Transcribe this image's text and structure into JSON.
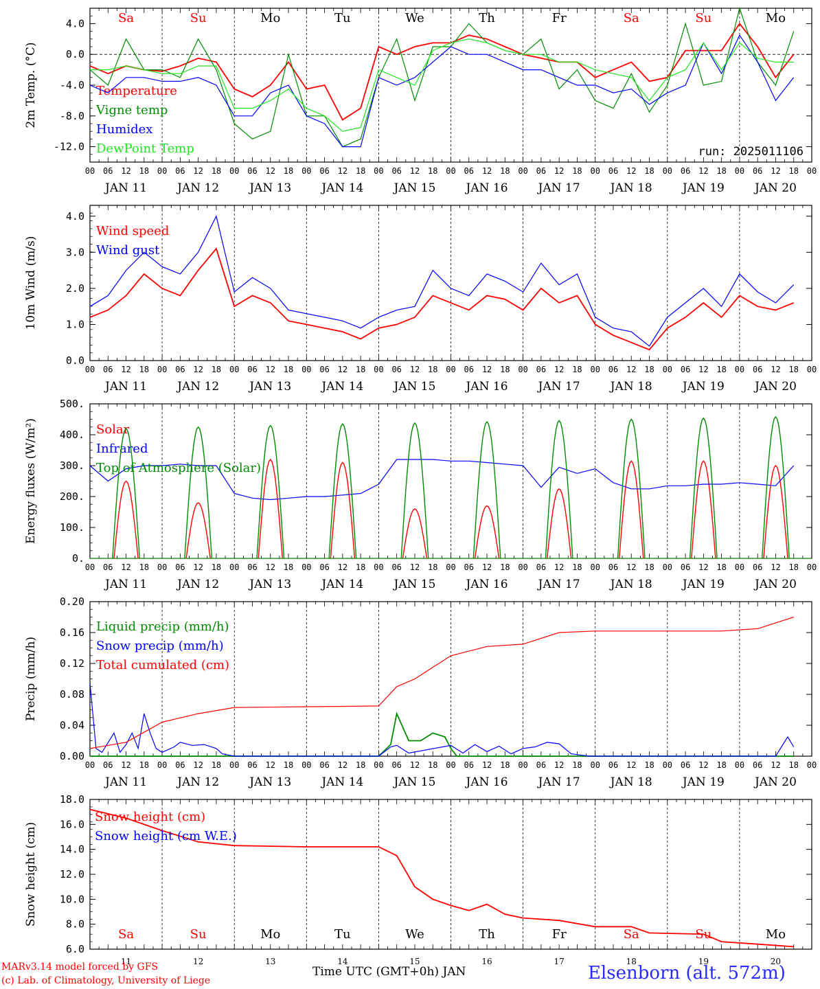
{
  "colors": {
    "temperature": "#ff0000",
    "vigne": "#008c00",
    "humidex": "#0000ff",
    "dewpoint": "#22e622",
    "weekend_day": "#ff0000",
    "weekday": "#000000"
  },
  "days": {
    "top": [
      "Sa",
      "Su",
      "Mo",
      "Tu",
      "We",
      "Th",
      "Fr",
      "Sa",
      "Su",
      "Mo"
    ],
    "bottom": [
      "Sa",
      "Su",
      "Mo",
      "Tu",
      "We",
      "Th",
      "Fr",
      "Sa",
      "Su",
      "Mo"
    ],
    "weekend_index": [
      0,
      1,
      7,
      8
    ]
  },
  "hour_ticks": [
    "00",
    "06",
    "12",
    "18"
  ],
  "end_tick": "00",
  "date_labels": [
    "JAN 11",
    "JAN 12",
    "JAN 13",
    "JAN 14",
    "JAN 15",
    "JAN 16",
    "JAN 17",
    "JAN 18",
    "JAN 19",
    "JAN 20"
  ],
  "day_numbers": [
    "11",
    "12",
    "13",
    "14",
    "15",
    "16",
    "17",
    "18",
    "19",
    "20"
  ],
  "run_label": "run: 2025011106",
  "footer": {
    "model": "MARv3.14 model forced by GFS",
    "lab": "(c) Lab. of Climatology, University of Liege",
    "xaxis": "Time UTC (GMT+0h) JAN",
    "station": "Elsenborn (alt. 572m)"
  },
  "chart_data": [
    {
      "type": "line",
      "ylabel": "2m Temp. (°C)",
      "ylim": [
        -14,
        6
      ],
      "yticks": [
        "4.0",
        "0.0",
        "-4.0",
        "-8.0",
        "-12.0"
      ],
      "ytick_values": [
        4,
        0,
        -4,
        -8,
        -12
      ],
      "zero_line": true,
      "series": [
        {
          "name": "Temperature",
          "color": "#ff0000",
          "x": [
            0,
            6,
            12,
            18,
            24,
            30,
            36,
            42,
            48,
            54,
            60,
            66,
            72,
            78,
            84,
            90,
            96,
            102,
            108,
            114,
            120,
            126,
            132,
            138,
            144,
            150,
            156,
            162,
            168,
            174,
            180,
            186,
            192,
            198,
            204,
            210,
            216,
            222,
            228,
            234
          ],
          "values": [
            -1.5,
            -2.5,
            -1.5,
            -2,
            -2.2,
            -1.5,
            -0.5,
            -1,
            -4.5,
            -5.5,
            -4,
            -1,
            -4.5,
            -4,
            -8.5,
            -7,
            1,
            0,
            1,
            1.5,
            1.5,
            2.5,
            2,
            1,
            0,
            -0.5,
            -1,
            -1,
            -3,
            -2,
            -1,
            -3.5,
            -3,
            0.5,
            0.5,
            0.5,
            4,
            1,
            -3,
            0
          ]
        },
        {
          "name": "Vigne temp",
          "color": "#008c00",
          "x": [
            0,
            6,
            12,
            18,
            24,
            30,
            36,
            42,
            48,
            54,
            60,
            66,
            72,
            78,
            84,
            90,
            96,
            102,
            108,
            114,
            120,
            126,
            132,
            138,
            144,
            150,
            156,
            162,
            168,
            174,
            180,
            186,
            192,
            198,
            204,
            210,
            216,
            222,
            228,
            234
          ],
          "values": [
            -2,
            -4,
            2,
            -2,
            -2,
            -3,
            2,
            -2,
            -9,
            -11,
            -10,
            0,
            -8,
            -8,
            -12,
            -11,
            -3,
            2,
            -6,
            1,
            1,
            4,
            1.5,
            0.5,
            0,
            2,
            -4.5,
            -2,
            -6,
            -7,
            -2.5,
            -7.5,
            -4,
            4,
            -4,
            -3.5,
            6,
            -1,
            -4,
            3
          ]
        },
        {
          "name": "Humidex",
          "color": "#0000ff",
          "x": [
            0,
            6,
            12,
            18,
            24,
            30,
            36,
            42,
            48,
            54,
            60,
            66,
            72,
            78,
            84,
            90,
            96,
            102,
            108,
            114,
            120,
            126,
            132,
            138,
            144,
            150,
            156,
            162,
            168,
            174,
            180,
            186,
            192,
            198,
            204,
            210,
            216,
            222,
            228,
            234
          ],
          "values": [
            -4,
            -5,
            -3,
            -3,
            -3.5,
            -3.5,
            -3,
            -4,
            -8,
            -8,
            -5,
            -4,
            -8,
            -9,
            -12,
            -12,
            -3,
            -4,
            -3,
            -1,
            1,
            0,
            0,
            -1,
            -2,
            -2,
            -3,
            -4,
            -4,
            -5,
            -4.5,
            -6.5,
            -5,
            -4,
            1.5,
            -2.5,
            2.5,
            -1,
            -6,
            -3
          ]
        },
        {
          "name": "DewPoint Temp",
          "color": "#22e622",
          "x": [
            0,
            6,
            12,
            18,
            24,
            30,
            36,
            42,
            48,
            54,
            60,
            66,
            72,
            78,
            84,
            90,
            96,
            102,
            108,
            114,
            120,
            126,
            132,
            138,
            144,
            150,
            156,
            162,
            168,
            174,
            180,
            186,
            192,
            198,
            204,
            210,
            216,
            222,
            228,
            234
          ],
          "values": [
            -2,
            -2,
            -1.5,
            -2,
            -2.5,
            -2.5,
            -1.5,
            -1.5,
            -7,
            -7,
            -6,
            -4.5,
            -7,
            -8,
            -10,
            -9.5,
            -2,
            -3,
            -4,
            0.5,
            1.5,
            2,
            1.5,
            0.5,
            0,
            0,
            -1,
            -1,
            -2,
            -2.5,
            -3,
            -6,
            -3,
            -2,
            1.5,
            -2,
            1.5,
            -0.5,
            -1,
            -1
          ]
        }
      ]
    },
    {
      "type": "line",
      "ylabel": "10m Wind (m/s)",
      "ylim": [
        0,
        4.3
      ],
      "yticks": [
        "4.0",
        "3.0",
        "2.0",
        "1.0",
        "0.0"
      ],
      "ytick_values": [
        4,
        3,
        2,
        1,
        0
      ],
      "series": [
        {
          "name": "Wind speed",
          "color": "#ff0000",
          "x": [
            0,
            6,
            12,
            18,
            24,
            30,
            36,
            42,
            48,
            54,
            60,
            66,
            72,
            78,
            84,
            90,
            96,
            102,
            108,
            114,
            120,
            126,
            132,
            138,
            144,
            150,
            156,
            162,
            168,
            174,
            180,
            186,
            192,
            198,
            204,
            210,
            216,
            222,
            228,
            234
          ],
          "values": [
            1.2,
            1.4,
            1.8,
            2.4,
            2.0,
            1.8,
            2.5,
            3.1,
            1.5,
            1.8,
            1.6,
            1.1,
            1.0,
            0.9,
            0.8,
            0.6,
            0.9,
            1.0,
            1.2,
            1.8,
            1.6,
            1.4,
            1.8,
            1.7,
            1.4,
            2.0,
            1.6,
            1.8,
            1.0,
            0.7,
            0.5,
            0.3,
            0.9,
            1.2,
            1.6,
            1.2,
            1.8,
            1.5,
            1.4,
            1.6
          ]
        },
        {
          "name": "Wind gust",
          "color": "#0000ff",
          "x": [
            0,
            6,
            12,
            18,
            24,
            30,
            36,
            42,
            48,
            54,
            60,
            66,
            72,
            78,
            84,
            90,
            96,
            102,
            108,
            114,
            120,
            126,
            132,
            138,
            144,
            150,
            156,
            162,
            168,
            174,
            180,
            186,
            192,
            198,
            204,
            210,
            216,
            222,
            228,
            234
          ],
          "values": [
            1.5,
            1.8,
            2.5,
            3.0,
            2.6,
            2.4,
            3.0,
            4.0,
            1.9,
            2.3,
            2.0,
            1.4,
            1.3,
            1.2,
            1.1,
            0.9,
            1.2,
            1.4,
            1.5,
            2.5,
            2.0,
            1.8,
            2.4,
            2.2,
            1.9,
            2.7,
            2.1,
            2.4,
            1.2,
            0.9,
            0.8,
            0.4,
            1.2,
            1.6,
            2.0,
            1.5,
            2.4,
            1.9,
            1.6,
            2.1
          ]
        }
      ]
    },
    {
      "type": "line",
      "ylabel": "Energy fluxes (W/m²)",
      "ylim": [
        0,
        500
      ],
      "yticks": [
        "500.",
        "400.",
        "300.",
        "200.",
        "100.",
        "0."
      ],
      "ytick_values": [
        500,
        400,
        300,
        200,
        100,
        0
      ],
      "series": [
        {
          "name": "Solar",
          "color": "#ff0000",
          "peak_x": [
            12,
            36,
            60,
            84,
            108,
            132,
            156,
            180,
            204,
            228
          ],
          "peaks": [
            250,
            180,
            320,
            310,
            160,
            170,
            225,
            315,
            315,
            300
          ]
        },
        {
          "name": "Infrared",
          "color": "#0000ff",
          "x": [
            0,
            6,
            12,
            18,
            24,
            30,
            36,
            42,
            48,
            54,
            60,
            66,
            72,
            78,
            84,
            90,
            96,
            102,
            108,
            114,
            120,
            126,
            132,
            138,
            144,
            150,
            156,
            162,
            168,
            174,
            180,
            186,
            192,
            198,
            204,
            210,
            216,
            222,
            228,
            234
          ],
          "values": [
            300,
            250,
            290,
            300,
            300,
            305,
            300,
            300,
            210,
            195,
            190,
            195,
            200,
            200,
            205,
            210,
            240,
            320,
            320,
            320,
            315,
            315,
            310,
            305,
            300,
            230,
            295,
            275,
            290,
            245,
            225,
            225,
            235,
            235,
            240,
            240,
            245,
            240,
            235,
            300
          ]
        },
        {
          "name": "Top of Atmosphere (Solar)",
          "color": "#008c00",
          "peak_x": [
            12,
            36,
            60,
            84,
            108,
            132,
            156,
            180,
            204,
            228
          ],
          "peaks": [
            420,
            425,
            430,
            435,
            438,
            442,
            446,
            450,
            454,
            458
          ]
        }
      ]
    },
    {
      "type": "line",
      "ylabel": "Precip (mm/h)",
      "ylim": [
        0,
        0.2
      ],
      "yticks": [
        "0.20",
        "0.16",
        "0.12",
        "0.08",
        "0.04",
        "0.00"
      ],
      "ytick_values": [
        0.2,
        0.16,
        0.12,
        0.08,
        0.04,
        0
      ],
      "series": [
        {
          "name": "Liquid precip (mm/h)",
          "color": "#008c00",
          "x": [
            0,
            96,
            100,
            102,
            106,
            110,
            114,
            118,
            120,
            122,
            234
          ],
          "values": [
            0,
            0,
            0.015,
            0.055,
            0.02,
            0.02,
            0.03,
            0.025,
            0.01,
            0,
            0
          ]
        },
        {
          "name": "Snow precip (mm/h)",
          "color": "#0000ff",
          "x": [
            0,
            2,
            4,
            8,
            10,
            12,
            14,
            16,
            18,
            20,
            22,
            24,
            28,
            30,
            34,
            38,
            42,
            44,
            48,
            96,
            100,
            102,
            106,
            120,
            124,
            128,
            132,
            136,
            140,
            144,
            148,
            152,
            156,
            160,
            166,
            228,
            232,
            234
          ],
          "values": [
            0.095,
            0.01,
            0.005,
            0.03,
            0.005,
            0.015,
            0.03,
            0.01,
            0.055,
            0.03,
            0.01,
            0.005,
            0.012,
            0.018,
            0.014,
            0.015,
            0.01,
            0.003,
            0,
            0,
            0.012,
            0.014,
            0.004,
            0.014,
            0.004,
            0.015,
            0.006,
            0.013,
            0.003,
            0.01,
            0.012,
            0.018,
            0.016,
            0.003,
            0,
            0,
            0.025,
            0.012
          ]
        },
        {
          "name": "Total cumulated (cm)",
          "color": "#ff0000",
          "x": [
            0,
            12,
            24,
            36,
            48,
            72,
            96,
            102,
            108,
            114,
            120,
            132,
            144,
            156,
            168,
            180,
            192,
            210,
            222,
            234
          ],
          "values": [
            0.01,
            0.018,
            0.044,
            0.055,
            0.063,
            0.064,
            0.065,
            0.09,
            0.1,
            0.115,
            0.13,
            0.142,
            0.145,
            0.16,
            0.162,
            0.162,
            0.162,
            0.162,
            0.165,
            0.18
          ]
        }
      ]
    },
    {
      "type": "line",
      "ylabel": "Snow height (cm)",
      "ylim": [
        6,
        18
      ],
      "yticks": [
        "18.0",
        "16.0",
        "14.0",
        "12.0",
        "10.0",
        "8.0",
        "6.0"
      ],
      "ytick_values": [
        18,
        16,
        14,
        12,
        10,
        8,
        6
      ],
      "series": [
        {
          "name": "Snow height (cm)",
          "color": "#ff0000",
          "x": [
            0,
            12,
            24,
            36,
            48,
            72,
            96,
            102,
            108,
            114,
            120,
            126,
            132,
            138,
            144,
            156,
            168,
            180,
            186,
            204,
            210,
            222,
            234
          ],
          "values": [
            17.2,
            16.5,
            15.5,
            14.6,
            14.3,
            14.2,
            14.2,
            13.5,
            11,
            10,
            9.5,
            9.1,
            9.6,
            8.8,
            8.5,
            8.3,
            7.8,
            7.8,
            7.3,
            7.2,
            6.6,
            6.4,
            6.2
          ]
        },
        {
          "name": "Snow height (cm W.E.)",
          "color": "#0000ff"
        }
      ]
    }
  ]
}
